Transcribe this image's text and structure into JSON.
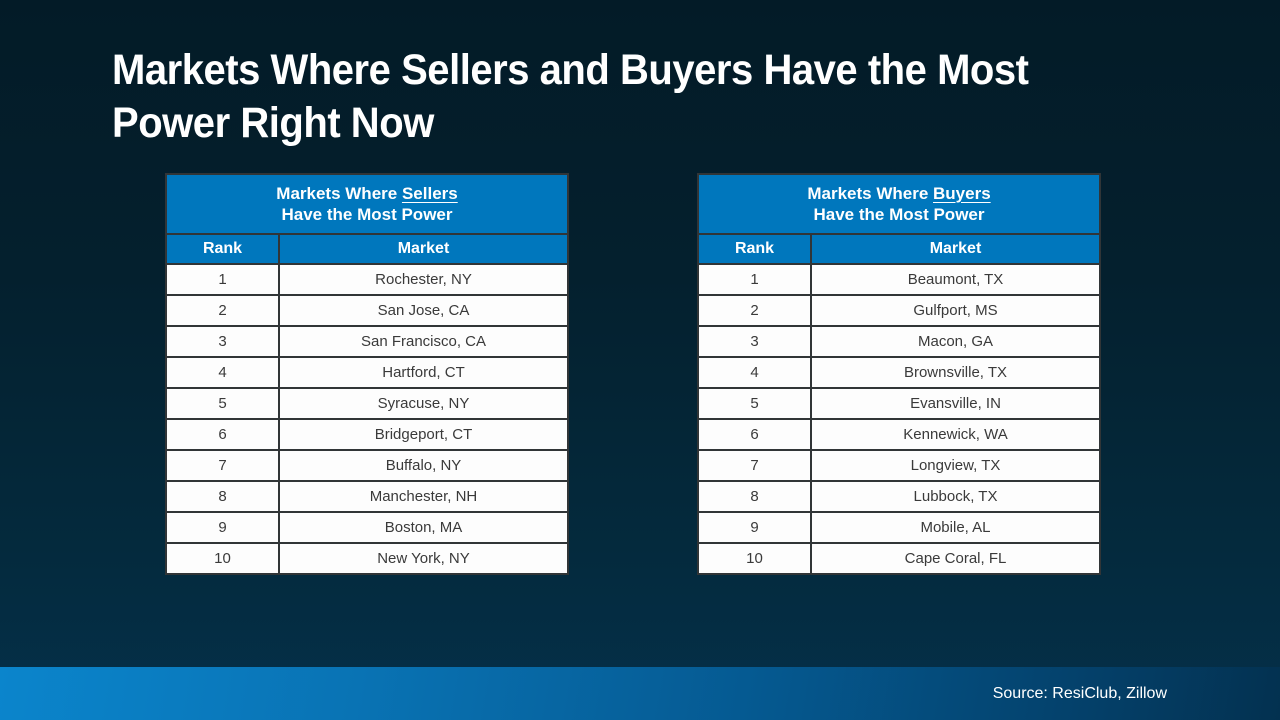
{
  "title": {
    "line1": "Markets Where Sellers and Buyers Have the Most",
    "line2": "Power Right Now"
  },
  "source": {
    "label": "Source: ResiClub, Zillow"
  },
  "colors": {
    "table_header_blue": "#0077BD",
    "background_top": "#031B27",
    "background_bottom": "#05304A",
    "source_bar_left": "#0B85CC",
    "source_bar_right": "#033150",
    "row_background": "#FDFDFD",
    "row_text": "#3A3A3A",
    "title_text": "#FFFFFF"
  },
  "tables": [
    {
      "name": "sellers",
      "title_prefix": "Markets Where",
      "title_keyword": "Sellers",
      "title_line2": "Have the Most Power",
      "col_rank": "Rank",
      "col_market": "Market",
      "rows": [
        {
          "rank": "1",
          "market": "Rochester, NY"
        },
        {
          "rank": "2",
          "market": "San Jose, CA"
        },
        {
          "rank": "3",
          "market": "San Francisco, CA"
        },
        {
          "rank": "4",
          "market": "Hartford, CT"
        },
        {
          "rank": "5",
          "market": "Syracuse, NY"
        },
        {
          "rank": "6",
          "market": "Bridgeport, CT"
        },
        {
          "rank": "7",
          "market": "Buffalo, NY"
        },
        {
          "rank": "8",
          "market": "Manchester, NH"
        },
        {
          "rank": "9",
          "market": "Boston, MA"
        },
        {
          "rank": "10",
          "market": "New York, NY"
        }
      ]
    },
    {
      "name": "buyers",
      "title_prefix": "Markets Where",
      "title_keyword": "Buyers",
      "title_line2": "Have the Most Power",
      "col_rank": "Rank",
      "col_market": "Market",
      "rows": [
        {
          "rank": "1",
          "market": "Beaumont, TX"
        },
        {
          "rank": "2",
          "market": "Gulfport, MS"
        },
        {
          "rank": "3",
          "market": "Macon, GA"
        },
        {
          "rank": "4",
          "market": "Brownsville, TX"
        },
        {
          "rank": "5",
          "market": "Evansville, IN"
        },
        {
          "rank": "6",
          "market": "Kennewick, WA"
        },
        {
          "rank": "7",
          "market": "Longview, TX"
        },
        {
          "rank": "8",
          "market": "Lubbock, TX"
        },
        {
          "rank": "9",
          "market": "Mobile, AL"
        },
        {
          "rank": "10",
          "market": "Cape Coral, FL"
        }
      ]
    }
  ],
  "chart_data": [
    {
      "type": "table",
      "title": "Markets Where Sellers Have the Most Power",
      "columns": [
        "Rank",
        "Market"
      ],
      "rows": [
        [
          1,
          "Rochester, NY"
        ],
        [
          2,
          "San Jose, CA"
        ],
        [
          3,
          "San Francisco, CA"
        ],
        [
          4,
          "Hartford, CT"
        ],
        [
          5,
          "Syracuse, NY"
        ],
        [
          6,
          "Bridgeport, CT"
        ],
        [
          7,
          "Buffalo, NY"
        ],
        [
          8,
          "Manchester, NH"
        ],
        [
          9,
          "Boston, MA"
        ],
        [
          10,
          "New York, NY"
        ]
      ]
    },
    {
      "type": "table",
      "title": "Markets Where Buyers Have the Most Power",
      "columns": [
        "Rank",
        "Market"
      ],
      "rows": [
        [
          1,
          "Beaumont, TX"
        ],
        [
          2,
          "Gulfport, MS"
        ],
        [
          3,
          "Macon, GA"
        ],
        [
          4,
          "Brownsville, TX"
        ],
        [
          5,
          "Evansville, IN"
        ],
        [
          6,
          "Kennewick, WA"
        ],
        [
          7,
          "Longview, TX"
        ],
        [
          8,
          "Lubbock, TX"
        ],
        [
          9,
          "Mobile, AL"
        ],
        [
          10,
          "Cape Coral, FL"
        ]
      ]
    }
  ]
}
